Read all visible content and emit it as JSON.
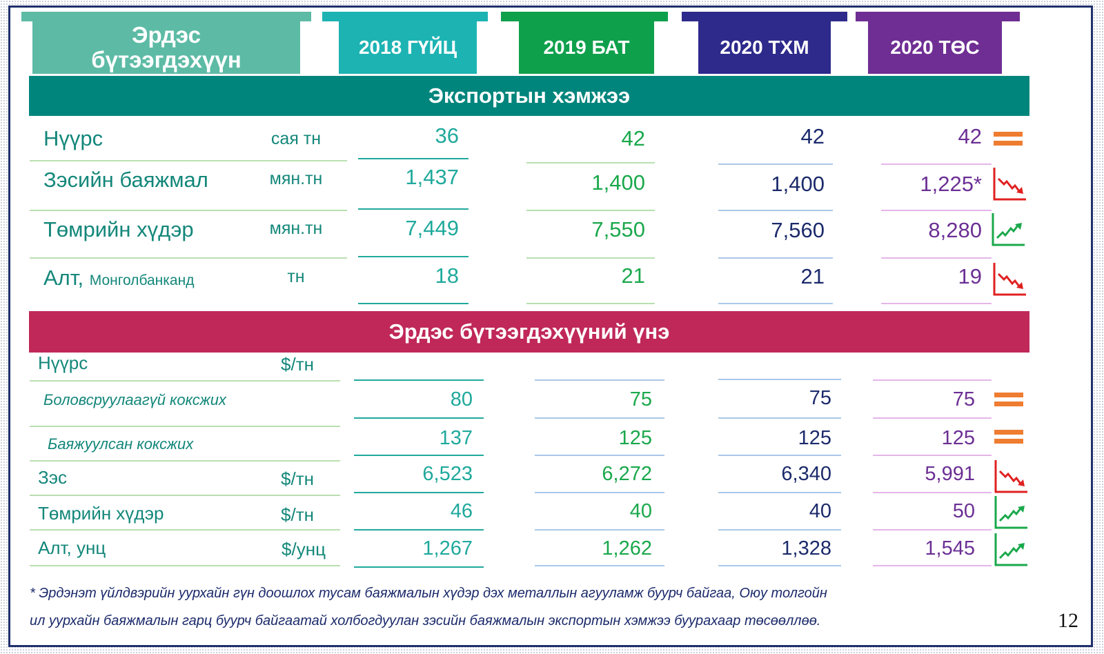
{
  "header": {
    "product_label_line1": "Эрдэс",
    "product_label_line2": "бүтээгдэхүүн",
    "col1": "2018 ГҮЙЦ",
    "col2": "2019 БАТ",
    "col3": "2020 ТХМ",
    "col4": "2020 ТӨС"
  },
  "colors": {
    "teal": "#00857c",
    "crimson": "#c0285a",
    "col1": "#1db3b3",
    "col2": "#0fa04c",
    "col3": "#2d2a8c",
    "col4": "#6f2e93",
    "product": "#5dbba5"
  },
  "export_section": {
    "title": "Экспортын хэмжээ",
    "rows": [
      {
        "name": "Нүүрс",
        "sub": "",
        "unit": "сая тн",
        "v1": "36",
        "v2": "42",
        "v3": "42",
        "v4": "42",
        "trend": "equal"
      },
      {
        "name": "Зэсийн баяжмал",
        "sub": "",
        "unit": "мян.тн",
        "v1": "1,437",
        "v2": "1,400",
        "v3": "1,400",
        "v4": "1,225*",
        "trend": "down"
      },
      {
        "name": "Төмрийн хүдэр",
        "sub": "",
        "unit": "мян.тн",
        "v1": "7,449",
        "v2": "7,550",
        "v3": "7,560",
        "v4": "8,280",
        "trend": "up"
      },
      {
        "name": "Алт,",
        "sub": "Монголбанканд",
        "unit": "тн",
        "v1": "18",
        "v2": "21",
        "v3": "21",
        "v4": "19",
        "trend": "down"
      }
    ]
  },
  "price_section": {
    "title": "Эрдэс бүтээгдэхүүний үнэ",
    "coal_label": "Нүүрс",
    "coal_unit": "$/тн",
    "rows": [
      {
        "name": "Боловсруулаагүй коксжих",
        "unit": "",
        "v1": "80",
        "v2": "75",
        "v3": "75",
        "v4": "75",
        "trend": "equal"
      },
      {
        "name": "Баяжуулсан коксжих",
        "unit": "",
        "v1": "137",
        "v2": "125",
        "v3": "125",
        "v4": "125",
        "trend": "equal"
      },
      {
        "name": "Зэс",
        "unit": "$/тн",
        "v1": "6,523",
        "v2": "6,272",
        "v3": "6,340",
        "v4": "5,991",
        "trend": "down"
      },
      {
        "name": "Төмрийн хүдэр",
        "unit": "$/тн",
        "v1": "46",
        "v2": "40",
        "v3": "40",
        "v4": "50",
        "trend": "up"
      },
      {
        "name": "Алт, унц",
        "unit": "$/унц",
        "v1": "1,267",
        "v2": "1,262",
        "v3": "1,328",
        "v4": "1,545",
        "trend": "up"
      }
    ]
  },
  "footnote": {
    "line1": "* Эрдэнэт үйлдвэрийн уурхайн гүн доошлох тусам баяжмалын хүдэр дэх металлын агууламж буурч байгаа, Оюу толгойн",
    "line2": "ил уурхайн баяжмалын гарц буурч байгаатай холбогдуулан зэсийн баяжмалын экспортын хэмжээ буурахаар төсөөллөө."
  },
  "page_number": "12"
}
